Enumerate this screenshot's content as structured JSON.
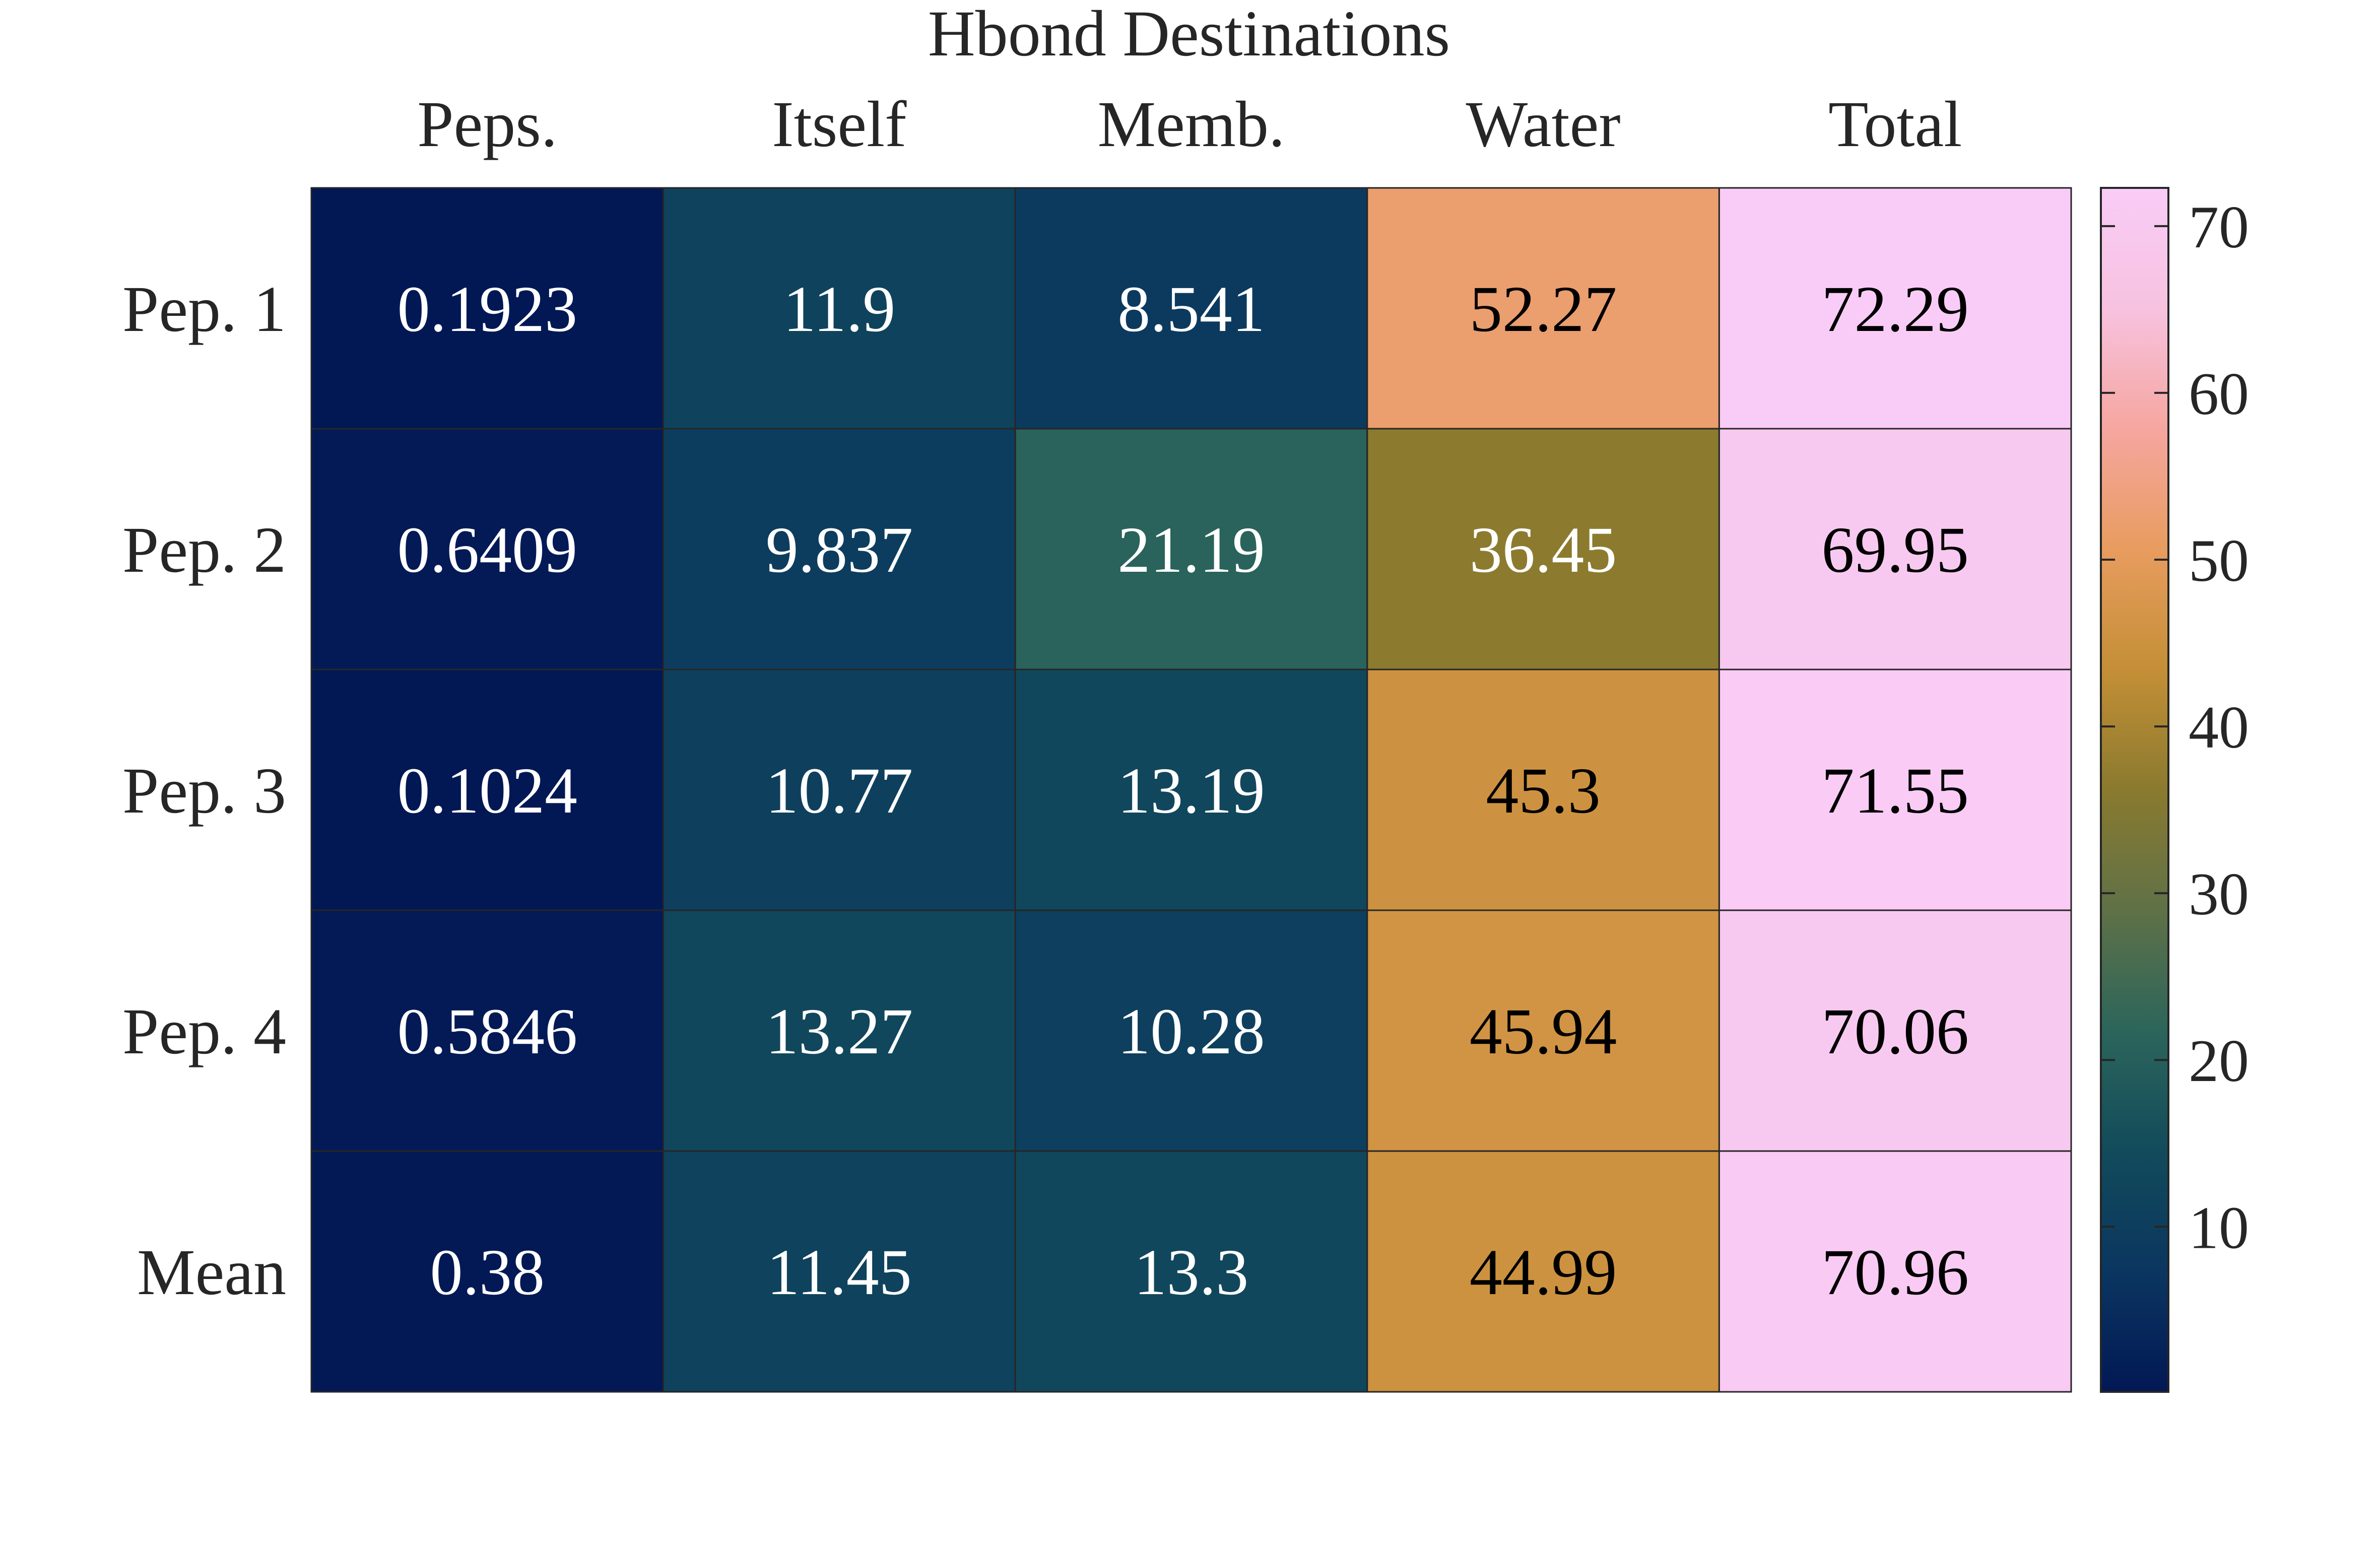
{
  "chart_data": {
    "type": "heatmap",
    "title": "Hbond Destinations",
    "columns": [
      "Peps.",
      "Itself",
      "Memb.",
      "Water",
      "Total"
    ],
    "rows": [
      "Pep. 1",
      "Pep. 2",
      "Pep. 3",
      "Pep. 4",
      "Mean"
    ],
    "values": [
      [
        0.1923,
        11.9,
        8.541,
        52.27,
        72.29
      ],
      [
        0.6409,
        9.837,
        21.19,
        36.45,
        69.95
      ],
      [
        0.1024,
        10.77,
        13.19,
        45.3,
        71.55
      ],
      [
        0.5846,
        13.27,
        10.28,
        45.94,
        70.06
      ],
      [
        0.38,
        11.45,
        13.3,
        44.99,
        70.96
      ]
    ],
    "labels": [
      [
        "0.1923",
        "11.9",
        "8.541",
        "52.27",
        "72.29"
      ],
      [
        "0.6409",
        "9.837",
        "21.19",
        "36.45",
        "69.95"
      ],
      [
        "0.1024",
        "10.77",
        "13.19",
        "45.3",
        "71.55"
      ],
      [
        "0.5846",
        "13.27",
        "10.28",
        "45.94",
        "70.06"
      ],
      [
        "0.38",
        "11.45",
        "13.3",
        "44.99",
        "70.96"
      ]
    ],
    "colorbar": {
      "range": [
        0.1024,
        72.29
      ],
      "ticks": [
        10,
        20,
        30,
        40,
        50,
        60,
        70
      ],
      "tick_labels": [
        "10",
        "20",
        "30",
        "40",
        "50",
        "60",
        "70"
      ],
      "colormap_stops": [
        "#021855",
        "#0b3660",
        "#124b5b",
        "#2c655b",
        "#5f7147",
        "#8a7a2f",
        "#c48f36",
        "#e89c5f",
        "#f6a6a0",
        "#f7c2e0",
        "#f9ccf7"
      ]
    },
    "light_text_color": "#ffffff",
    "dark_text_color": "#000000",
    "gridlines": true,
    "colorbar_position": "right"
  }
}
